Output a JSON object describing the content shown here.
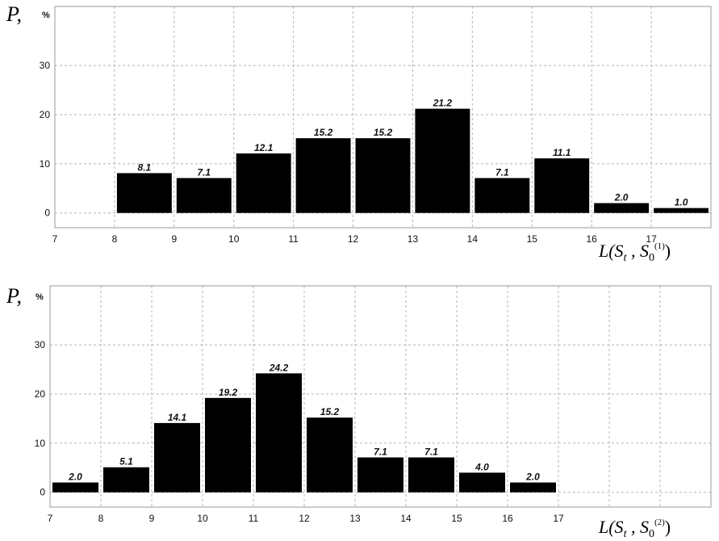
{
  "chart_data": [
    {
      "type": "bar",
      "unit_label": "%",
      "ylabel": "P,",
      "xlabel": {
        "prefix": "L(S",
        "sub": "t",
        "sep": " , S",
        "sub2": "0",
        "sup": "(1)",
        "suffix": ")"
      },
      "bar_color": "#000000",
      "bin_starts": [
        8,
        9,
        10,
        11,
        12,
        13,
        14,
        15,
        16,
        17
      ],
      "values": [
        8.1,
        7.1,
        12.1,
        15.2,
        15.2,
        21.2,
        7.1,
        11.1,
        2.0,
        1.0
      ],
      "value_labels": [
        "8.1",
        "7.1",
        "12.1",
        "15.2",
        "15.2",
        "21.2",
        "7.1",
        "11.1",
        "2.0",
        "1.0"
      ],
      "xlim": [
        7,
        18
      ],
      "xticks": [
        7,
        8,
        9,
        10,
        11,
        12,
        13,
        14,
        15,
        16,
        17
      ],
      "ylim": [
        -3,
        42
      ],
      "yticks": [
        0,
        10,
        20,
        30
      ],
      "grid": true
    },
    {
      "type": "bar",
      "unit_label": "%",
      "ylabel": "P,",
      "xlabel": {
        "prefix": "L(S",
        "sub": "t",
        "sep": " , S",
        "sub2": "0",
        "sup": "(2)",
        "suffix": ")"
      },
      "bar_color": "#000000",
      "bin_starts": [
        7,
        8,
        9,
        10,
        11,
        12,
        13,
        14,
        15,
        16
      ],
      "values": [
        2.0,
        5.1,
        14.1,
        19.2,
        24.2,
        15.2,
        7.1,
        7.1,
        4.0,
        2.0
      ],
      "value_labels": [
        "2.0",
        "5.1",
        "14.1",
        "19.2",
        "24.2",
        "15.2",
        "7.1",
        "7.1",
        "4.0",
        "2.0"
      ],
      "xlim": [
        7,
        20
      ],
      "xticks": [
        7,
        8,
        9,
        10,
        11,
        12,
        13,
        14,
        15,
        16,
        17
      ],
      "ylim": [
        -3,
        42
      ],
      "yticks": [
        0,
        10,
        20,
        30
      ],
      "grid": true
    }
  ]
}
